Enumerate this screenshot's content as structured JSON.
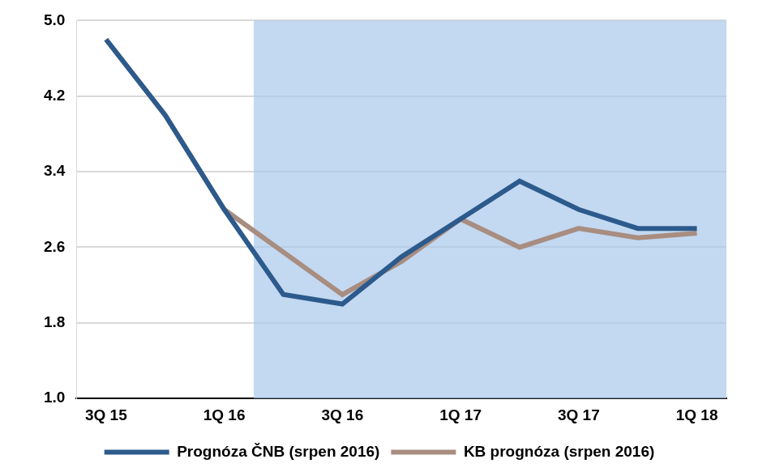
{
  "chart_data": {
    "type": "line",
    "categories": [
      "3Q 15",
      null,
      "1Q 16",
      null,
      "3Q 16",
      null,
      "1Q 17",
      null,
      "3Q 17",
      null,
      "1Q 18"
    ],
    "series": [
      {
        "name": "Prognóza ČNB (srpen 2016)",
        "color": "#2c5a8c",
        "values": [
          4.8,
          4.0,
          3.0,
          2.1,
          2.0,
          2.5,
          2.9,
          3.3,
          3.0,
          2.8,
          2.8
        ]
      },
      {
        "name": "KB prognóza (srpen 2016)",
        "color": "#a88d80",
        "values": [
          4.8,
          4.0,
          3.0,
          2.55,
          2.1,
          2.45,
          2.9,
          2.6,
          2.8,
          2.7,
          2.75
        ]
      }
    ],
    "ylim": [
      1.0,
      5.0
    ],
    "yticks": [
      {
        "value": 1.0,
        "label": "1.0"
      },
      1.8,
      2.6,
      3.4,
      4.2,
      {
        "value": 5.0,
        "label": "5.0"
      }
    ],
    "grid": true,
    "legend": "bottom"
  }
}
